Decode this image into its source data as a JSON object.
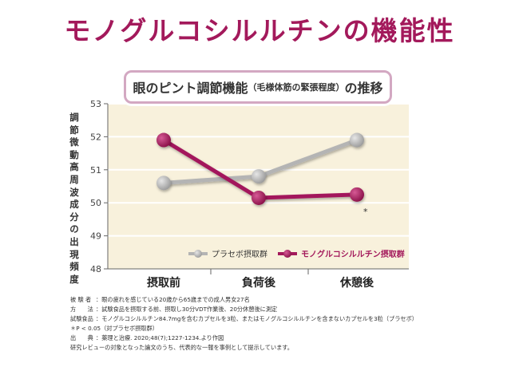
{
  "headline": "モノグルコシルルチンの機能性",
  "subtitle": {
    "main_before": "眼のピント調節機能",
    "paren": "（毛様体筋の緊張程度）",
    "main_after": "の推移"
  },
  "colors": {
    "accent": "#a3195b",
    "placebo": "#b4b4b4",
    "treatment": "#a3195b",
    "plot_bg": "#f8f1dc",
    "grid": "#ffffff"
  },
  "chart_data": {
    "type": "line",
    "categories": [
      "摂取前",
      "負荷後",
      "休憩後"
    ],
    "ylabel": "調節微動高周波成分の出現頻度",
    "ylim": [
      48,
      53
    ],
    "yticks": [
      "48",
      "49",
      "50",
      "51",
      "52",
      "53"
    ],
    "series": [
      {
        "name": "プラセボ摂取群",
        "values": [
          50.6,
          50.8,
          51.9
        ],
        "color": "#b4b4b4"
      },
      {
        "name": "モノグルコシルルチン摂取群",
        "values": [
          51.9,
          50.15,
          50.25
        ],
        "color": "#a3195b"
      }
    ],
    "annotations": [
      {
        "text": "*",
        "category": "休憩後",
        "series": "モノグルコシルルチン摂取群"
      }
    ],
    "legend": "bottom-right",
    "grid": true
  },
  "footnotes": [
    {
      "key": "被 験 者",
      "text": "：眼の疲れを感じている20歳から65歳までの成人男女27名"
    },
    {
      "key": "方　　法",
      "text": "：試験食品を摂取する前、摂取し30分VDT作業後、20分休憩後に測定"
    },
    {
      "key": "試験食品",
      "text": "：モノグルコシルルチン84.7mgを含むカプセルを3粒、またはモノグルコシルルチンを含まないカプセルを3粒（プラセボ）"
    },
    {
      "key": "",
      "text": "＊P < 0.05（対プラセボ摂取群）"
    },
    {
      "key": "出　　典",
      "text": "：薬理と治療. 2020;48(7);1227-1234.より作図"
    },
    {
      "key": "",
      "text": "研究レビューの対象となった論文のうち、代表的な一報を事例として提示しています。"
    }
  ]
}
